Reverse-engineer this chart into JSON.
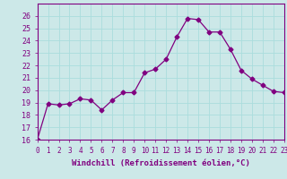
{
  "x": [
    0,
    1,
    2,
    3,
    4,
    5,
    6,
    7,
    8,
    9,
    10,
    11,
    12,
    13,
    14,
    15,
    16,
    17,
    18,
    19,
    20,
    21,
    22,
    23
  ],
  "y": [
    16.0,
    18.9,
    18.8,
    18.9,
    19.3,
    19.2,
    18.4,
    19.2,
    19.8,
    19.8,
    21.4,
    21.7,
    22.5,
    24.3,
    25.8,
    25.7,
    24.7,
    24.7,
    23.3,
    21.6,
    20.9,
    20.4,
    19.9,
    19.8
  ],
  "line_color": "#800080",
  "marker": "D",
  "marker_size": 2.5,
  "bg_color": "#cce8e8",
  "grid_color": "#aadddd",
  "xlabel": "Windchill (Refroidissement éolien,°C)",
  "ylim": [
    16,
    27
  ],
  "xlim": [
    0,
    23
  ],
  "yticks": [
    16,
    17,
    18,
    19,
    20,
    21,
    22,
    23,
    24,
    25,
    26
  ],
  "xticks": [
    0,
    1,
    2,
    3,
    4,
    5,
    6,
    7,
    8,
    9,
    10,
    11,
    12,
    13,
    14,
    15,
    16,
    17,
    18,
    19,
    20,
    21,
    22,
    23
  ],
  "axis_color": "#800080",
  "tick_color": "#800080",
  "label_color": "#800080",
  "xlabel_fontsize": 6.5,
  "ytick_fontsize": 6,
  "xtick_fontsize": 5.5
}
